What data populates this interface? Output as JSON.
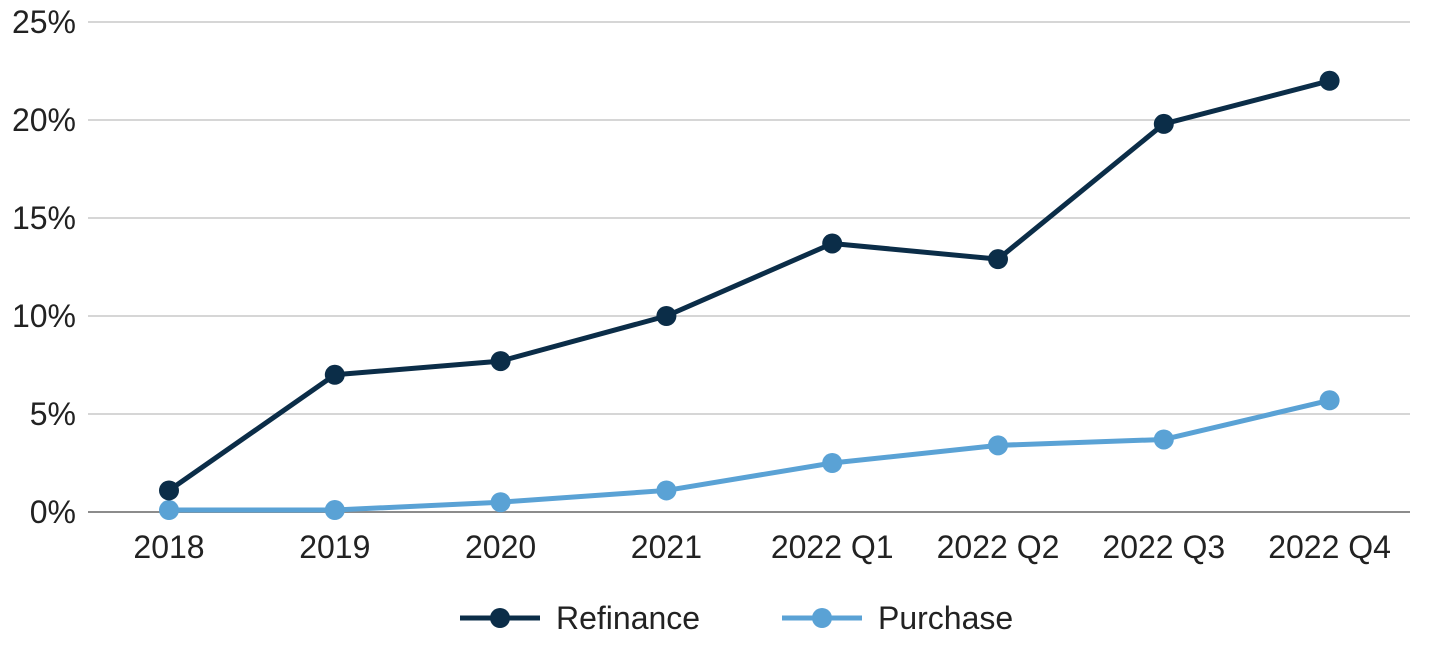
{
  "chart_data": {
    "type": "line",
    "categories": [
      "2018",
      "2019",
      "2020",
      "2021",
      "2022 Q1",
      "2022 Q2",
      "2022 Q3",
      "2022 Q4"
    ],
    "series": [
      {
        "name": "Refinance",
        "color": "#0b2d48",
        "values": [
          1.1,
          7.0,
          7.7,
          10.0,
          13.7,
          12.9,
          19.8,
          22.0
        ]
      },
      {
        "name": "Purchase",
        "color": "#5aa2d5",
        "values": [
          0.1,
          0.1,
          0.5,
          1.1,
          2.5,
          3.4,
          3.7,
          5.7
        ]
      }
    ],
    "ylim": [
      0,
      25
    ],
    "yticks": [
      0,
      5,
      10,
      15,
      20,
      25
    ],
    "ytick_labels": [
      "0%",
      "5%",
      "10%",
      "15%",
      "20%",
      "25%"
    ],
    "grid": true,
    "legend_position": "bottom-center"
  }
}
